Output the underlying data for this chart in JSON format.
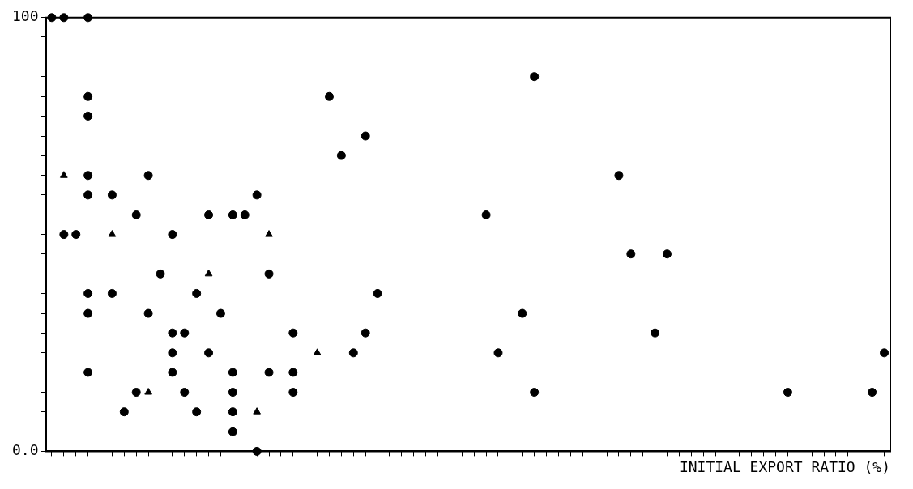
{
  "chart_data": {
    "type": "scatter",
    "xlabel": "INITIAL EXPORT RATIO (%)",
    "categories": [
      null,
      null,
      null,
      null,
      null,
      null,
      null,
      null,
      null,
      null,
      null,
      null,
      null,
      null,
      null,
      null,
      null,
      null,
      null,
      null,
      null,
      null,
      null,
      null,
      null,
      null,
      null,
      null,
      null,
      null,
      null,
      null,
      null,
      null,
      null,
      null,
      null,
      null,
      null,
      null,
      null,
      null,
      null,
      null,
      null,
      null,
      null,
      null,
      null,
      null,
      null,
      null,
      null,
      null,
      null,
      null,
      null,
      null,
      null,
      null,
      null,
      null,
      null,
      null,
      null,
      null,
      null,
      null,
      null,
      null
    ],
    "ylim": [
      0,
      100
    ],
    "yticks": [
      {
        "value": 0,
        "label": "0.0"
      },
      {
        "value": 4.5,
        "label": null
      },
      {
        "value": 9.1,
        "label": null
      },
      {
        "value": 13.6,
        "label": null
      },
      {
        "value": 18.2,
        "label": null
      },
      {
        "value": 22.7,
        "label": null
      },
      {
        "value": 27.3,
        "label": null
      },
      {
        "value": 31.8,
        "label": null
      },
      {
        "value": 36.4,
        "label": null
      },
      {
        "value": 40.9,
        "label": null
      },
      {
        "value": 45.5,
        "label": null
      },
      {
        "value": 50,
        "label": null
      },
      {
        "value": 54.5,
        "label": null
      },
      {
        "value": 59.1,
        "label": null
      },
      {
        "value": 63.6,
        "label": null
      },
      {
        "value": 68.2,
        "label": null
      },
      {
        "value": 72.7,
        "label": null
      },
      {
        "value": 77.3,
        "label": null
      },
      {
        "value": 81.8,
        "label": null
      },
      {
        "value": 86.4,
        "label": null
      },
      {
        "value": 90.9,
        "label": null
      },
      {
        "value": 95.5,
        "label": null
      },
      100
    ],
    "tick_labels": "y",
    "grid": false,
    "legend": false,
    "marker": "circle",
    "series": [
      {
        "color": "#000000",
        "values": [
          100,
          100,
          50,
          100,
          null,
          59.1,
          9.1,
          54.5,
          63.6,
          40.9,
          50,
          27.3,
          36.4,
          54.5,
          31.8,
          54.5,
          54.5,
          59.1,
          40.9,
          null,
          27.3,
          null,
          null,
          81.8,
          68.2,
          22.7,
          72.7,
          36.4,
          null,
          null,
          null,
          null,
          null,
          null,
          null,
          null,
          54.5,
          22.7,
          null,
          31.8,
          86.4,
          null,
          null,
          null,
          null,
          null,
          null,
          63.6,
          45.5,
          null,
          27.3,
          45.5,
          null,
          null,
          null,
          null,
          null,
          null,
          null,
          null,
          null,
          13.6,
          null,
          null,
          null,
          null,
          null,
          null,
          13.6,
          22.7
        ]
      },
      {
        "color": "#000000",
        "values": [
          null,
          50,
          null,
          81.8,
          null,
          36.4,
          null,
          13.6,
          31.8,
          null,
          27.3,
          13.6,
          9.1,
          22.7,
          null,
          18.2,
          null,
          0,
          18.2,
          null,
          18.2,
          null,
          null,
          null,
          null,
          null,
          27.3,
          null,
          null,
          null,
          null,
          null,
          null,
          null,
          null,
          null,
          null,
          null,
          null,
          null,
          13.6,
          null,
          null,
          null,
          null,
          null,
          null,
          null,
          null,
          null,
          null,
          null,
          null,
          null,
          null,
          null,
          null,
          null,
          null,
          null,
          null,
          null,
          null,
          null,
          null,
          null,
          null,
          null,
          null,
          null
        ]
      },
      {
        "color": "#000000",
        "values": [
          null,
          null,
          null,
          77.3,
          null,
          null,
          null,
          null,
          null,
          null,
          22.7,
          null,
          null,
          null,
          null,
          13.6,
          null,
          null,
          null,
          null,
          13.6,
          null,
          null,
          null,
          null,
          null,
          null,
          null,
          null,
          null,
          null,
          null,
          null,
          null,
          null,
          null,
          null,
          null,
          null,
          null,
          null,
          null,
          null,
          null,
          null,
          null,
          null,
          null,
          null,
          null,
          null,
          null,
          null,
          null,
          null,
          null,
          null,
          null,
          null,
          null,
          null,
          null,
          null,
          null,
          null,
          null,
          null,
          null,
          null,
          null
        ]
      },
      {
        "color": "#000000",
        "values": [
          null,
          null,
          null,
          63.6,
          null,
          null,
          null,
          null,
          null,
          null,
          18.2,
          null,
          null,
          null,
          null,
          9.1,
          null,
          null,
          null,
          null,
          null,
          null,
          null,
          null,
          null,
          null,
          null,
          null,
          null,
          null,
          null,
          null,
          null,
          null,
          null,
          null,
          null,
          null,
          null,
          null,
          null,
          null,
          null,
          null,
          null,
          null,
          null,
          null,
          null,
          null,
          null,
          null,
          null,
          null,
          null,
          null,
          null,
          null,
          null,
          null,
          null,
          null,
          null,
          null,
          null,
          null,
          null,
          null,
          null,
          null
        ]
      },
      {
        "color": "#000000",
        "values": [
          null,
          null,
          null,
          59.1,
          null,
          null,
          null,
          null,
          null,
          null,
          null,
          null,
          null,
          null,
          null,
          4.5,
          null,
          null,
          null,
          null,
          null,
          null,
          null,
          null,
          null,
          null,
          null,
          null,
          null,
          null,
          null,
          null,
          null,
          null,
          null,
          null,
          null,
          null,
          null,
          null,
          null,
          null,
          null,
          null,
          null,
          null,
          null,
          null,
          null,
          null,
          null,
          null,
          null,
          null,
          null,
          null,
          null,
          null,
          null,
          null,
          null,
          null,
          null,
          null,
          null,
          null,
          null,
          null,
          null,
          null
        ]
      },
      {
        "color": "#000000",
        "values": [
          null,
          null,
          null,
          36.4,
          null,
          null,
          null,
          null,
          null,
          null,
          null,
          null,
          null,
          null,
          null,
          null,
          null,
          null,
          null,
          null,
          null,
          null,
          null,
          null,
          null,
          null,
          null,
          null,
          null,
          null,
          null,
          null,
          null,
          null,
          null,
          null,
          null,
          null,
          null,
          null,
          null,
          null,
          null,
          null,
          null,
          null,
          null,
          null,
          null,
          null,
          null,
          null,
          null,
          null,
          null,
          null,
          null,
          null,
          null,
          null,
          null,
          null,
          null,
          null,
          null,
          null,
          null,
          null,
          null,
          null
        ]
      },
      {
        "color": "#000000",
        "values": [
          null,
          null,
          null,
          31.8,
          null,
          null,
          null,
          null,
          null,
          null,
          null,
          null,
          null,
          null,
          null,
          null,
          null,
          null,
          null,
          null,
          null,
          null,
          null,
          null,
          null,
          null,
          null,
          null,
          null,
          null,
          null,
          null,
          null,
          null,
          null,
          null,
          null,
          null,
          null,
          null,
          null,
          null,
          null,
          null,
          null,
          null,
          null,
          null,
          null,
          null,
          null,
          null,
          null,
          null,
          null,
          null,
          null,
          null,
          null,
          null,
          null,
          null,
          null,
          null,
          null,
          null,
          null,
          null,
          null,
          null
        ]
      },
      {
        "color": "#000000",
        "values": [
          null,
          null,
          null,
          18.2,
          null,
          null,
          null,
          null,
          null,
          null,
          null,
          null,
          null,
          null,
          null,
          null,
          null,
          null,
          null,
          null,
          null,
          null,
          null,
          null,
          null,
          null,
          null,
          null,
          null,
          null,
          null,
          null,
          null,
          null,
          null,
          null,
          null,
          null,
          null,
          null,
          null,
          null,
          null,
          null,
          null,
          null,
          null,
          null,
          null,
          null,
          null,
          null,
          null,
          null,
          null,
          null,
          null,
          null,
          null,
          null,
          null,
          null,
          null,
          null,
          null,
          null,
          null,
          null,
          null,
          null
        ]
      },
      {
        "color": "#000000",
        "marker": "triangle",
        "values": [
          null,
          63.6,
          null,
          null,
          null,
          50,
          null,
          null,
          13.6,
          null,
          null,
          null,
          null,
          40.9,
          null,
          null,
          null,
          9.1,
          50,
          null,
          null,
          null,
          22.7,
          null,
          null,
          null,
          null,
          null,
          null,
          null,
          null,
          null,
          null,
          null,
          null,
          null,
          null,
          null,
          null,
          null,
          null,
          null,
          null,
          null,
          null,
          null,
          null,
          null,
          null,
          null,
          null,
          null,
          null,
          null,
          null,
          null,
          null,
          null,
          null,
          null,
          null,
          null,
          null,
          null,
          null,
          null,
          null,
          null,
          null,
          null
        ]
      }
    ]
  }
}
